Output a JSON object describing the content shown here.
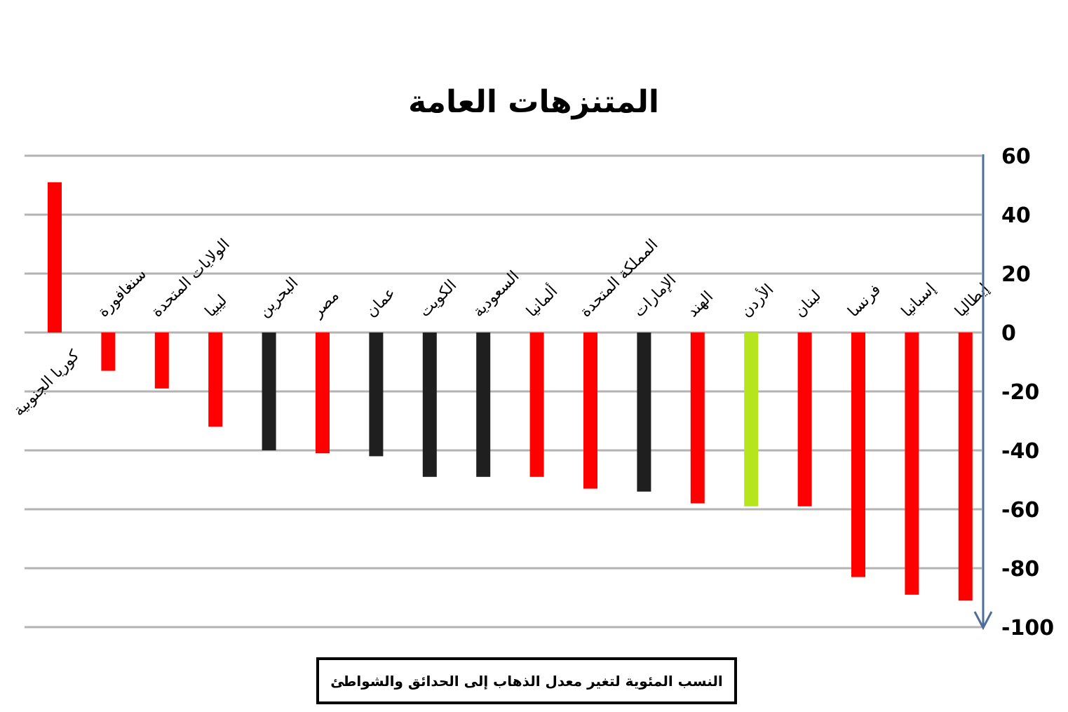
{
  "chart_data": {
    "type": "bar",
    "title": "المتنزهات العامة",
    "subtitle": "النسب المئوية لتغير معدل الذهاب إلى الحدائق والشواطئ",
    "xlabel": "",
    "ylabel": "",
    "ylim": [
      -100,
      60
    ],
    "yticks": [
      60,
      40,
      20,
      0,
      -20,
      -40,
      -60,
      -80,
      -100
    ],
    "grid": true,
    "y_axis_position": "right",
    "categories": [
      "كوريا الجنوبية",
      "سنغافورة",
      "الولايات المتحدة",
      "ليبيا",
      "البحرين",
      "مصر",
      "عمان",
      "الكويت",
      "السعودية",
      "ألمانيا",
      "المملكة المتحدة",
      "الإمارات",
      "الهند",
      "الأردن",
      "لبنان",
      "فرنسا",
      "إسبانيا",
      "إيطاليا"
    ],
    "values": [
      51,
      -13,
      -19,
      -32,
      -40,
      -41,
      -42,
      -49,
      -49,
      -49,
      -53,
      -54,
      -58,
      -59,
      -59,
      -83,
      -89,
      -91
    ],
    "bar_colors": [
      "#ff0000",
      "#ff0000",
      "#ff0000",
      "#ff0000",
      "#1f1f1f",
      "#ff0000",
      "#1f1f1f",
      "#1f1f1f",
      "#1f1f1f",
      "#ff0000",
      "#ff0000",
      "#1f1f1f",
      "#ff0000",
      "#b5e61d",
      "#ff0000",
      "#ff0000",
      "#ff0000",
      "#ff0000"
    ],
    "grid_color": "#b3b3b3",
    "axis_color": "#4e6d9b"
  }
}
